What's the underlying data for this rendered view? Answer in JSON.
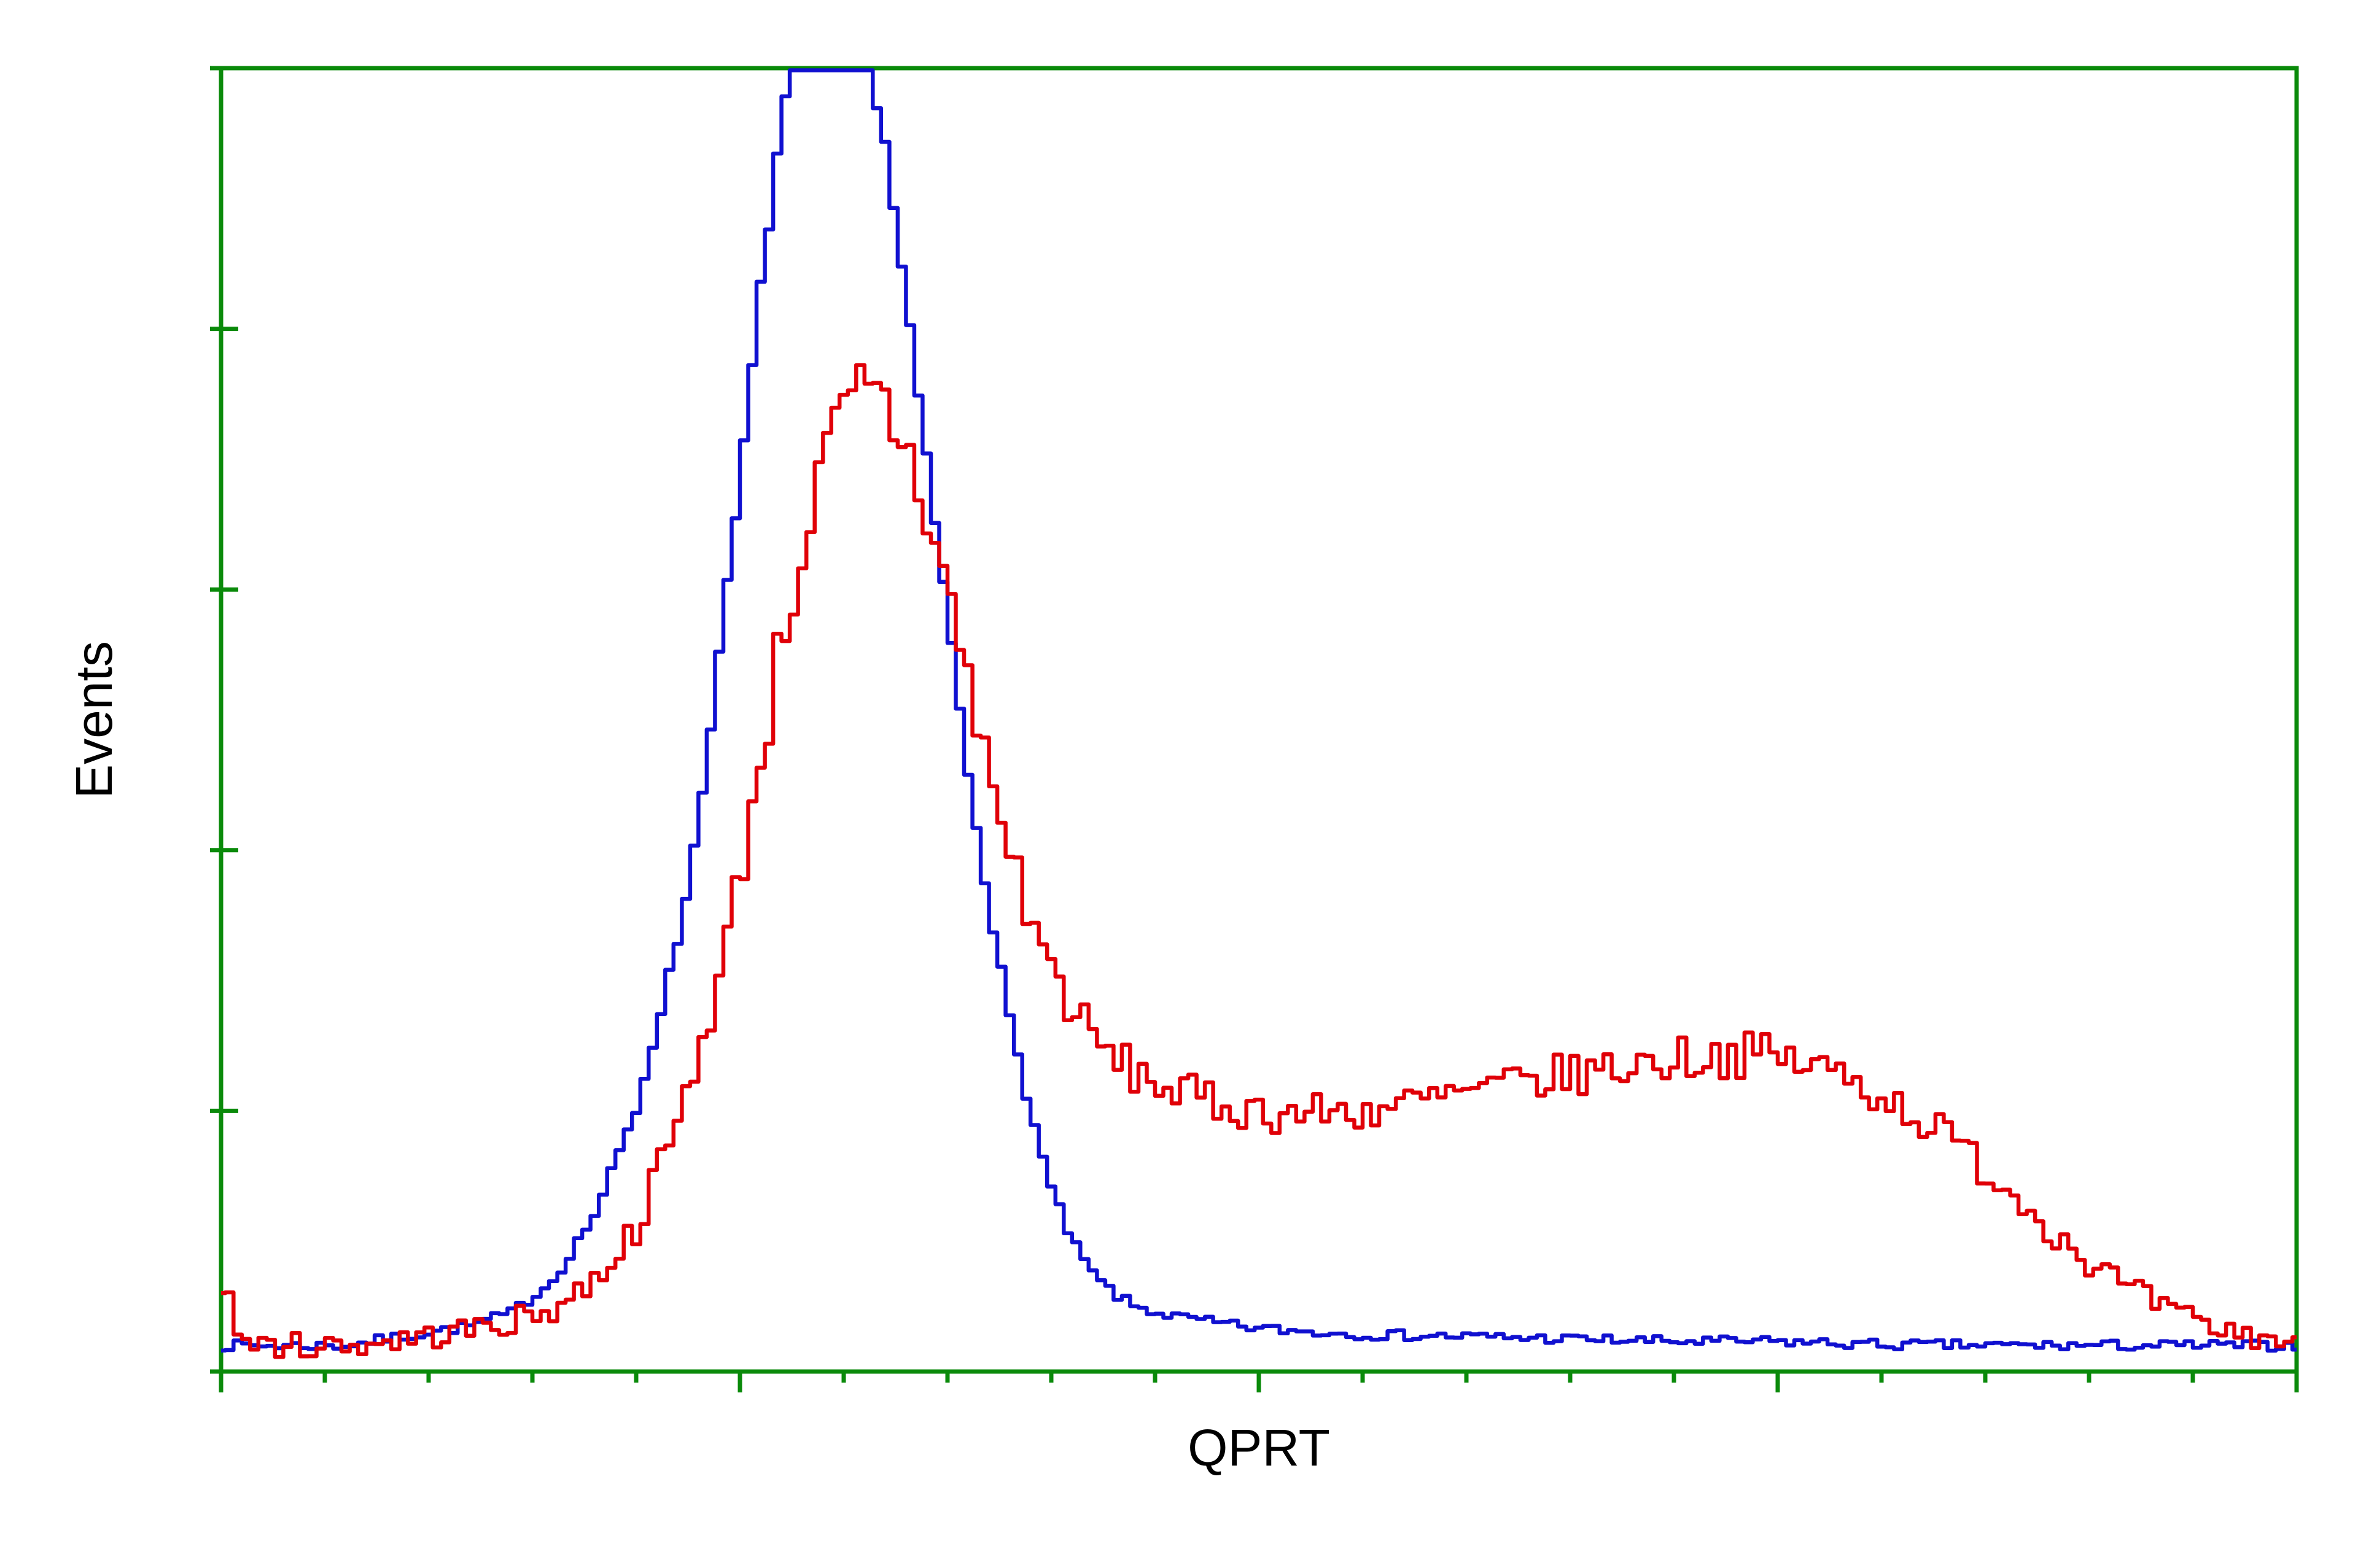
{
  "chart": {
    "type": "flow-cytometry-histogram",
    "aspect_ratio": 1.504,
    "background_color": "#ffffff",
    "plot_border_color": "#0a8a0a",
    "plot_border_width": 7,
    "tick_color": "#0a8a0a",
    "tick_width": 7,
    "ylabel": "Events",
    "ylabel_fontsize": 84,
    "ylabel_color": "#000000",
    "xlabel": "QPRT",
    "xlabel_fontsize": 84,
    "xlabel_color": "#000000",
    "xlim": [
      0,
      100
    ],
    "ylim": [
      0,
      100
    ],
    "x_major_ticks": [
      0,
      25,
      50,
      75,
      100
    ],
    "x_minor_per_major": 5,
    "x_major_tick_len": 34,
    "x_minor_tick_len": 18,
    "y_major_ticks": [
      0,
      20,
      40,
      60,
      80,
      100
    ],
    "y_major_tick_len_outer": 18,
    "y_major_tick_len_inner": 28,
    "line_width": 6.5,
    "noise_seed": 7,
    "series": {
      "blue": {
        "color": "#1010d0",
        "envelope": [
          [
            0,
            2
          ],
          [
            2,
            2
          ],
          [
            4,
            2
          ],
          [
            6,
            2
          ],
          [
            8,
            2.5
          ],
          [
            10,
            3
          ],
          [
            12,
            3.5
          ],
          [
            14,
            4.5
          ],
          [
            16,
            7
          ],
          [
            18,
            12
          ],
          [
            20,
            20
          ],
          [
            22,
            33
          ],
          [
            23,
            42
          ],
          [
            24,
            55
          ],
          [
            25,
            68
          ],
          [
            26,
            83
          ],
          [
            27,
            96
          ],
          [
            28,
            104
          ],
          [
            29,
            108
          ],
          [
            30,
            106
          ],
          [
            31,
            102
          ],
          [
            32,
            94
          ],
          [
            33,
            82
          ],
          [
            34,
            70
          ],
          [
            35,
            58
          ],
          [
            36,
            46
          ],
          [
            37,
            36
          ],
          [
            38,
            27
          ],
          [
            39,
            20
          ],
          [
            40,
            14
          ],
          [
            41,
            10
          ],
          [
            42,
            7.5
          ],
          [
            43,
            6
          ],
          [
            44,
            5
          ],
          [
            46,
            4.2
          ],
          [
            48,
            3.7
          ],
          [
            50,
            3.3
          ],
          [
            53,
            3.0
          ],
          [
            56,
            2.8
          ],
          [
            60,
            2.7
          ],
          [
            65,
            2.5
          ],
          [
            70,
            2.3
          ],
          [
            75,
            2.3
          ],
          [
            80,
            2.06
          ],
          [
            85,
            2.0
          ],
          [
            90,
            2.0
          ],
          [
            95,
            2.0
          ],
          [
            100,
            2.0
          ]
        ],
        "noise_amp_peak": 0.8,
        "noise_amp_base": 0.4
      },
      "red": {
        "color": "#e00008",
        "envelope": [
          [
            0,
            7
          ],
          [
            1,
            2.4
          ],
          [
            2,
            2
          ],
          [
            4,
            2
          ],
          [
            6,
            2
          ],
          [
            8,
            2.3
          ],
          [
            10,
            2.7
          ],
          [
            12,
            3.2
          ],
          [
            14,
            3.8
          ],
          [
            16,
            4.8
          ],
          [
            18,
            7
          ],
          [
            20,
            11
          ],
          [
            22,
            19
          ],
          [
            24,
            30
          ],
          [
            25,
            38
          ],
          [
            26,
            47
          ],
          [
            27,
            56
          ],
          [
            28,
            63
          ],
          [
            29,
            69
          ],
          [
            30,
            73
          ],
          [
            31,
            75
          ],
          [
            32,
            74
          ],
          [
            33,
            71
          ],
          [
            34,
            66
          ],
          [
            35,
            60
          ],
          [
            36,
            53
          ],
          [
            37,
            46
          ],
          [
            38,
            40
          ],
          [
            39,
            35
          ],
          [
            40,
            31
          ],
          [
            41,
            28
          ],
          [
            42,
            25.5
          ],
          [
            43,
            24
          ],
          [
            44,
            23
          ],
          [
            46,
            21.5
          ],
          [
            48,
            20.5
          ],
          [
            50,
            20
          ],
          [
            52,
            19.8
          ],
          [
            54,
            19.9
          ],
          [
            56,
            20.2
          ],
          [
            58,
            20.7
          ],
          [
            60,
            21.3
          ],
          [
            62,
            21.9
          ],
          [
            64,
            22.5
          ],
          [
            66,
            23
          ],
          [
            68,
            23.5
          ],
          [
            70,
            24
          ],
          [
            72,
            24.3
          ],
          [
            74,
            24.3
          ],
          [
            76,
            23.8
          ],
          [
            78,
            22.8
          ],
          [
            80,
            21.3
          ],
          [
            82,
            19.3
          ],
          [
            84,
            17
          ],
          [
            86,
            14.2
          ],
          [
            88,
            11.3
          ],
          [
            90,
            8.5
          ],
          [
            92,
            6.2
          ],
          [
            94,
            4.5
          ],
          [
            96,
            3.3
          ],
          [
            98,
            2.7
          ],
          [
            100,
            2.3
          ]
        ],
        "noise_amp_peak": 4.5,
        "noise_amp_base": 1.0
      }
    }
  }
}
